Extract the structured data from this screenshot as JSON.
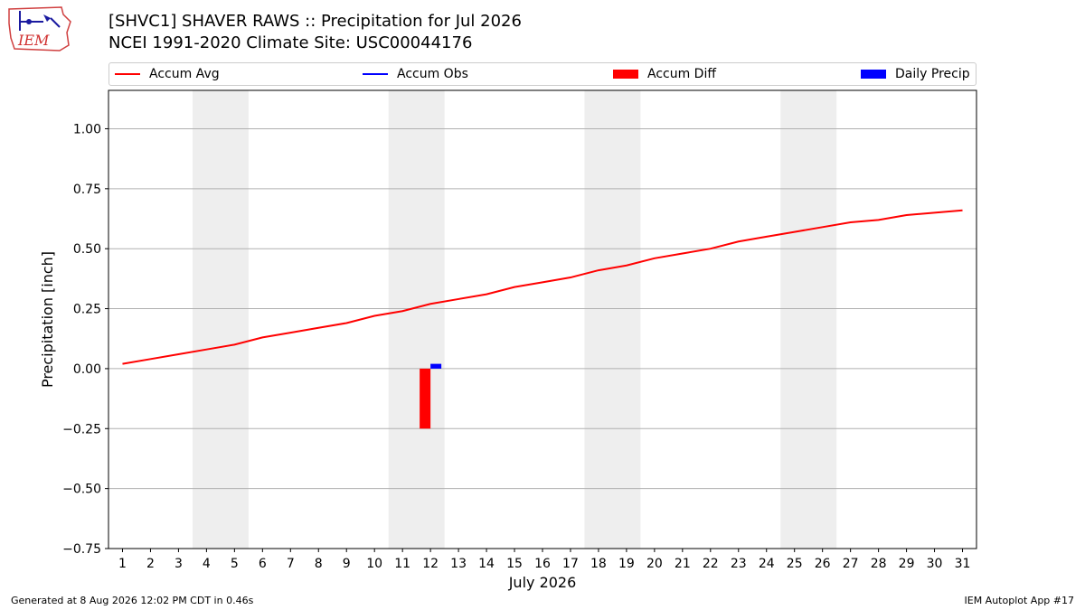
{
  "header": {
    "title_line1": "[SHVC1] SHAVER RAWS :: Precipitation for Jul 2026",
    "title_line2": "NCEI 1991-2020 Climate Site: USC00044176",
    "logo_text": "IEM"
  },
  "footer": {
    "generated": "Generated at 8 Aug 2026 12:02 PM CDT in 0.46s",
    "app": "IEM Autoplot App #17"
  },
  "legend": {
    "items": [
      {
        "label": "Accum Avg",
        "kind": "line",
        "color": "#ff0000"
      },
      {
        "label": "Accum Obs",
        "kind": "line",
        "color": "#0000ff"
      },
      {
        "label": "Accum Diff",
        "kind": "patch",
        "color": "#ff0000"
      },
      {
        "label": "Daily Precip",
        "kind": "patch",
        "color": "#0000ff"
      }
    ]
  },
  "chart_data": {
    "type": "line",
    "title": "[SHVC1] SHAVER RAWS :: Precipitation for Jul 2026",
    "xlabel": "July 2026",
    "ylabel": "Precipitation [inch]",
    "xlim": [
      0.5,
      31.5
    ],
    "ylim": [
      -0.75,
      1.16
    ],
    "grid": true,
    "legend_position": "top",
    "x": [
      1,
      2,
      3,
      4,
      5,
      6,
      7,
      8,
      9,
      10,
      11,
      12,
      13,
      14,
      15,
      16,
      17,
      18,
      19,
      20,
      21,
      22,
      23,
      24,
      25,
      26,
      27,
      28,
      29,
      30,
      31
    ],
    "yticks": [
      -0.75,
      -0.5,
      -0.25,
      0.0,
      0.25,
      0.5,
      0.75,
      1.0
    ],
    "ytick_labels": [
      "−0.75",
      "−0.50",
      "−0.25",
      "0.00",
      "0.25",
      "0.50",
      "0.75",
      "1.00"
    ],
    "weekend_spans": [
      [
        3.5,
        5.5
      ],
      [
        10.5,
        12.5
      ],
      [
        17.5,
        19.5
      ],
      [
        24.5,
        26.5
      ]
    ],
    "series": [
      {
        "name": "Accum Avg",
        "kind": "line",
        "color": "#ff0000",
        "values": [
          0.02,
          0.04,
          0.06,
          0.08,
          0.1,
          0.13,
          0.15,
          0.17,
          0.19,
          0.22,
          0.24,
          0.27,
          0.29,
          0.31,
          0.34,
          0.36,
          0.38,
          0.41,
          0.43,
          0.46,
          0.48,
          0.5,
          0.53,
          0.55,
          0.57,
          0.59,
          0.61,
          0.62,
          0.64,
          0.65,
          0.66
        ]
      },
      {
        "name": "Accum Diff",
        "kind": "bar",
        "color": "#ff0000",
        "points": [
          {
            "x": 12,
            "value": -0.25
          }
        ]
      },
      {
        "name": "Daily Precip",
        "kind": "bar",
        "color": "#0000ff",
        "points": [
          {
            "x": 12,
            "value": 0.02
          }
        ]
      }
    ]
  }
}
